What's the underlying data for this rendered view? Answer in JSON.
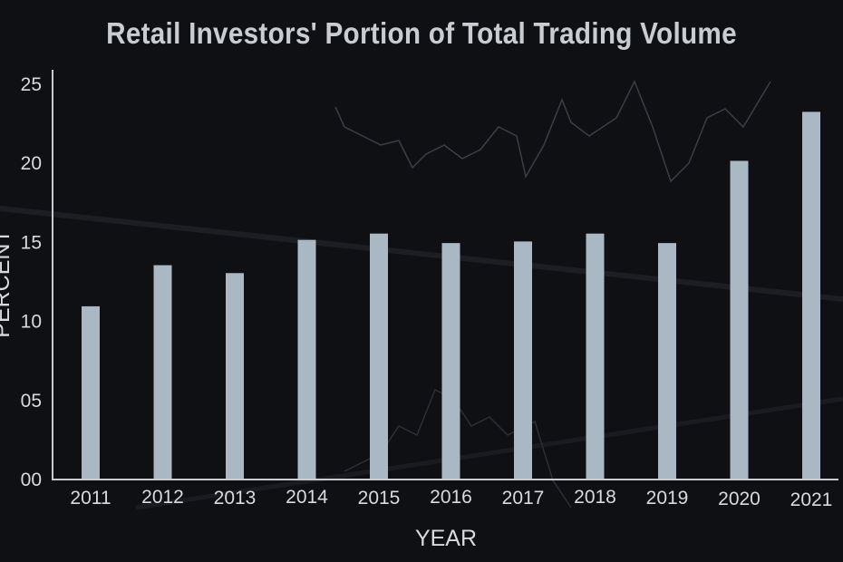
{
  "chart_data": {
    "type": "bar",
    "title": "Retail Investors' Portion of Total Trading Volume",
    "xlabel": "YEAR",
    "ylabel": "PERCENT",
    "categories": [
      "2011",
      "2012",
      "2013",
      "2014",
      "2015",
      "2016",
      "2017",
      "2018",
      "2019",
      "2020",
      "2021"
    ],
    "values": [
      10.9,
      13.5,
      13.0,
      15.1,
      15.5,
      14.9,
      15.0,
      15.5,
      14.9,
      20.1,
      23.2
    ],
    "yticks": [
      "00",
      "05",
      "10",
      "15",
      "20",
      "25"
    ],
    "ytick_values": [
      0,
      5,
      10,
      15,
      20,
      25
    ],
    "ylim": [
      0,
      25
    ],
    "grid": false,
    "bar_color": "#a9b8c2"
  }
}
